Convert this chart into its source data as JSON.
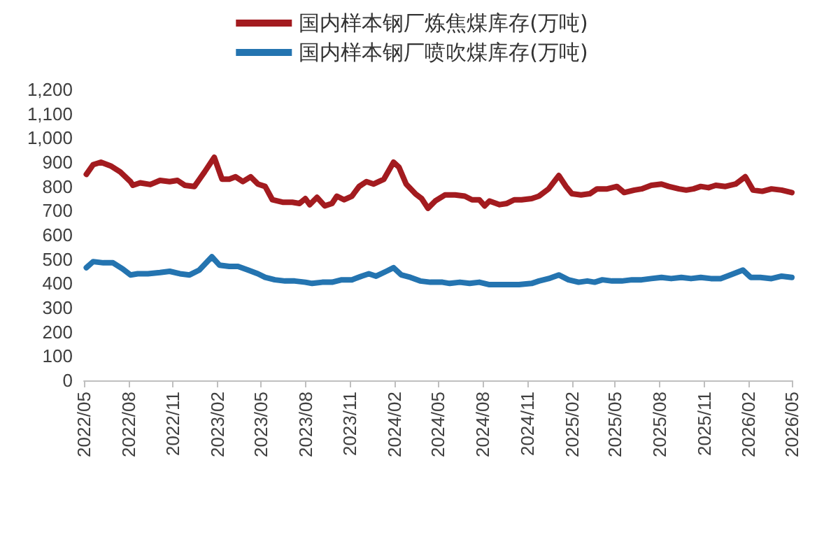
{
  "chart_data": {
    "type": "line",
    "legend": "top",
    "marker": "none",
    "line_style": "solid",
    "grid": false,
    "xlim": [
      "2022-05",
      "2026-05"
    ],
    "xticks": [
      {
        "value": "2022-05",
        "label": "2022/05"
      },
      {
        "value": "2022-08",
        "label": "2022/08"
      },
      {
        "value": "2022-11",
        "label": "2022/11"
      },
      {
        "value": "2023-02",
        "label": "2023/02"
      },
      {
        "value": "2023-05",
        "label": "2023/05"
      },
      {
        "value": "2023-08",
        "label": "2023/08"
      },
      {
        "value": "2023-11",
        "label": "2023/11"
      },
      {
        "value": "2024-02",
        "label": "2024/02"
      },
      {
        "value": "2024-05",
        "label": "2024/05"
      },
      {
        "value": "2024-08",
        "label": "2024/08"
      },
      {
        "value": "2024-11",
        "label": "2024/11"
      },
      {
        "value": "2025-02",
        "label": "2025/02"
      },
      {
        "value": "2025-05",
        "label": "2025/05"
      },
      {
        "value": "2025-08",
        "label": "2025/08"
      },
      {
        "value": "2025-11",
        "label": "2025/11"
      },
      {
        "value": "2026-02",
        "label": "2026/02"
      },
      {
        "value": "2026-05",
        "label": "2026/05"
      }
    ],
    "ylim": [
      0,
      1200
    ],
    "yticks": [
      0,
      100,
      200,
      300,
      400,
      500,
      600,
      700,
      800,
      900,
      {
        "value": 1000,
        "label": "1,000"
      },
      {
        "value": 1100,
        "label": "1,100"
      },
      {
        "value": 1200,
        "label": "1,200"
      }
    ],
    "series": [
      {
        "name": "国内样本钢厂炼焦煤库存(万吨)",
        "color": "#a31b1f",
        "x": [
          "2022-05-06",
          "2022-05-20",
          "2022-06-05",
          "2022-06-25",
          "2022-07-15",
          "2022-08-05",
          "2022-08-10",
          "2022-08-25",
          "2022-09-15",
          "2022-10-05",
          "2022-10-25",
          "2022-11-10",
          "2022-11-25",
          "2022-12-15",
          "2023-01-05",
          "2023-01-25",
          "2023-02-10",
          "2023-02-25",
          "2023-03-10",
          "2023-03-25",
          "2023-04-10",
          "2023-04-25",
          "2023-05-10",
          "2023-05-25",
          "2023-06-15",
          "2023-07-05",
          "2023-07-20",
          "2023-08-01",
          "2023-08-10",
          "2023-08-25",
          "2023-09-10",
          "2023-09-25",
          "2023-10-05",
          "2023-10-20",
          "2023-11-05",
          "2023-11-20",
          "2023-12-05",
          "2023-12-20",
          "2024-01-10",
          "2024-01-30",
          "2024-02-10",
          "2024-02-25",
          "2024-03-15",
          "2024-03-28",
          "2024-04-10",
          "2024-04-25",
          "2024-05-15",
          "2024-06-05",
          "2024-06-25",
          "2024-07-10",
          "2024-07-25",
          "2024-08-05",
          "2024-08-15",
          "2024-09-05",
          "2024-09-20",
          "2024-10-05",
          "2024-10-20",
          "2024-11-10",
          "2024-11-25",
          "2024-12-15",
          "2025-01-05",
          "2025-01-20",
          "2025-02-01",
          "2025-02-20",
          "2025-03-10",
          "2025-03-25",
          "2025-04-15",
          "2025-05-05",
          "2025-05-20",
          "2025-06-10",
          "2025-06-25",
          "2025-07-15",
          "2025-08-05",
          "2025-08-20",
          "2025-09-10",
          "2025-09-25",
          "2025-10-10",
          "2025-10-25",
          "2025-11-10",
          "2025-11-25",
          "2025-12-15",
          "2026-01-05",
          "2026-01-25",
          "2026-02-10",
          "2026-03-01",
          "2026-03-20",
          "2026-04-10",
          "2026-05-01"
        ],
        "values": [
          850,
          890,
          900,
          885,
          860,
          820,
          805,
          815,
          808,
          825,
          820,
          825,
          805,
          800,
          860,
          920,
          830,
          830,
          840,
          820,
          840,
          810,
          800,
          745,
          735,
          735,
          730,
          750,
          725,
          755,
          720,
          730,
          760,
          745,
          760,
          800,
          820,
          810,
          830,
          900,
          880,
          810,
          770,
          750,
          710,
          740,
          765,
          765,
          760,
          745,
          745,
          720,
          740,
          725,
          730,
          745,
          745,
          750,
          760,
          790,
          845,
          800,
          770,
          765,
          770,
          790,
          790,
          800,
          775,
          785,
          790,
          805,
          810,
          800,
          790,
          785,
          790,
          800,
          795,
          805,
          800,
          810,
          840,
          785,
          780,
          790,
          785,
          775
        ]
      },
      {
        "name": "国内样本钢厂喷吹煤库存(万吨)",
        "color": "#2474b0",
        "x": [
          "2022-05-06",
          "2022-05-20",
          "2022-06-10",
          "2022-06-30",
          "2022-07-20",
          "2022-08-05",
          "2022-08-20",
          "2022-09-10",
          "2022-10-05",
          "2022-10-25",
          "2022-11-15",
          "2022-12-05",
          "2022-12-25",
          "2023-01-20",
          "2023-02-05",
          "2023-02-25",
          "2023-03-15",
          "2023-04-05",
          "2023-04-25",
          "2023-05-10",
          "2023-05-30",
          "2023-06-20",
          "2023-07-10",
          "2023-08-01",
          "2023-08-15",
          "2023-09-05",
          "2023-09-25",
          "2023-10-15",
          "2023-11-05",
          "2023-11-25",
          "2023-12-10",
          "2023-12-25",
          "2024-01-15",
          "2024-01-30",
          "2024-02-15",
          "2024-03-05",
          "2024-03-25",
          "2024-04-15",
          "2024-05-10",
          "2024-05-25",
          "2024-06-15",
          "2024-07-05",
          "2024-07-25",
          "2024-08-15",
          "2024-09-05",
          "2024-09-25",
          "2024-10-15",
          "2024-11-10",
          "2024-11-25",
          "2024-12-15",
          "2025-01-05",
          "2025-01-25",
          "2025-02-15",
          "2025-03-05",
          "2025-03-20",
          "2025-04-05",
          "2025-04-25",
          "2025-05-15",
          "2025-06-05",
          "2025-06-25",
          "2025-07-15",
          "2025-08-05",
          "2025-08-25",
          "2025-09-15",
          "2025-10-05",
          "2025-10-25",
          "2025-11-15",
          "2025-12-05",
          "2025-12-25",
          "2026-01-20",
          "2026-02-05",
          "2026-02-25",
          "2026-03-20",
          "2026-04-10",
          "2026-05-01"
        ],
        "values": [
          465,
          490,
          485,
          485,
          460,
          435,
          440,
          440,
          445,
          450,
          440,
          435,
          455,
          510,
          475,
          470,
          470,
          455,
          440,
          425,
          415,
          410,
          410,
          405,
          400,
          405,
          405,
          415,
          415,
          430,
          440,
          430,
          450,
          465,
          435,
          425,
          410,
          405,
          405,
          400,
          405,
          400,
          405,
          395,
          395,
          395,
          395,
          400,
          410,
          420,
          435,
          415,
          405,
          410,
          405,
          415,
          410,
          410,
          415,
          415,
          420,
          425,
          420,
          425,
          420,
          425,
          420,
          420,
          435,
          455,
          425,
          425,
          420,
          430,
          425
        ]
      }
    ]
  }
}
